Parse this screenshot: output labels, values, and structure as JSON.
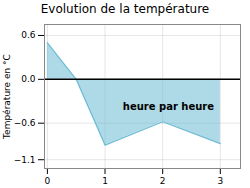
{
  "chart_data": {
    "type": "area",
    "title": "Evolution de la température",
    "ylabel": "Température en °C",
    "annotations": [
      {
        "text": "heure par heure",
        "x": 2.1,
        "y": -0.38
      }
    ],
    "x": [
      0,
      0.5,
      1,
      2,
      3
    ],
    "values": [
      0.5,
      0.0,
      -0.9,
      -0.58,
      -0.88
    ],
    "color": "#6bbbd4",
    "xlim": [
      -0.05,
      3.35
    ],
    "ylim": [
      -1.22,
      0.75
    ],
    "xticks": [
      0,
      1,
      2,
      3
    ],
    "yticks": [
      {
        "value": -1.1,
        "label": "−1.1"
      },
      {
        "value": -0.6,
        "label": "−0.6"
      },
      {
        "value": 0.0,
        "label": "0.0"
      },
      {
        "value": 0.6,
        "label": "0.6"
      }
    ],
    "grid": true
  }
}
